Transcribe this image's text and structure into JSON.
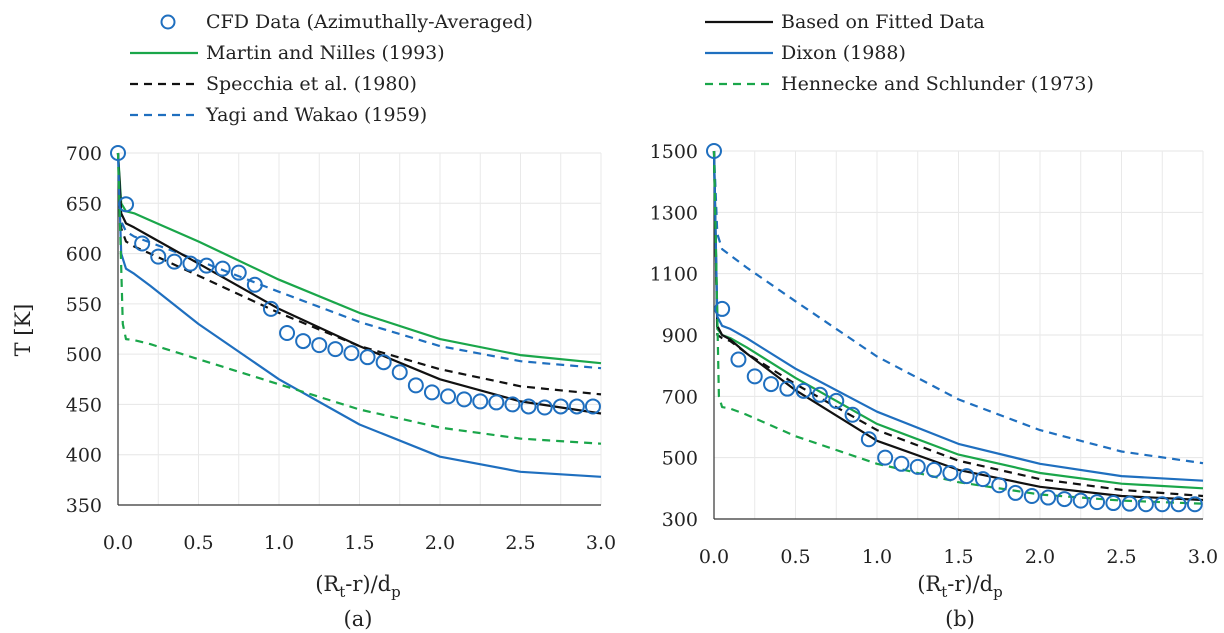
{
  "legend": [
    {
      "label": "CFD Data (Azimuthally-Averaged)",
      "style": "marker",
      "color": "#1f6fbf"
    },
    {
      "label": "Martin and Nilles (1993)",
      "style": "solid",
      "color": "#1aa64a"
    },
    {
      "label": "Specchia et al. (1980)",
      "style": "dashed",
      "color": "#111111"
    },
    {
      "label": "Yagi and Wakao (1959)",
      "style": "dashed",
      "color": "#1f6fbf"
    },
    {
      "label": "Based on Fitted Data",
      "style": "solid",
      "color": "#111111"
    },
    {
      "label": "Dixon (1988)",
      "style": "solid",
      "color": "#1f6fbf"
    },
    {
      "label": "Hennecke and Schlunder (1973)",
      "style": "dashed",
      "color": "#1aa64a"
    }
  ],
  "chart_data": [
    {
      "type": "line",
      "panel_label": "(a)",
      "xlabel": "(R_t-r)/d_p",
      "ylabel": "T [K]",
      "xlim": [
        0,
        3
      ],
      "ylim": [
        350,
        700
      ],
      "xticks": [
        "0.0",
        "0.5",
        "1.0",
        "1.5",
        "2.0",
        "2.5",
        "3.0"
      ],
      "yticks": [
        "350",
        "400",
        "450",
        "500",
        "550",
        "600",
        "650",
        "700"
      ],
      "grid": true,
      "cfd_points": {
        "x": [
          0.0,
          0.05,
          0.15,
          0.25,
          0.35,
          0.45,
          0.55,
          0.65,
          0.75,
          0.85,
          0.95,
          1.05,
          1.15,
          1.25,
          1.35,
          1.45,
          1.55,
          1.65,
          1.75,
          1.85,
          1.95,
          2.05,
          2.15,
          2.25,
          2.35,
          2.45,
          2.55,
          2.65,
          2.75,
          2.85,
          2.95
        ],
        "y": [
          700,
          649,
          610,
          597,
          592,
          590,
          588,
          585,
          581,
          569,
          545,
          521,
          513,
          509,
          505,
          501,
          497,
          492,
          482,
          469,
          462,
          458,
          455,
          453,
          452,
          450,
          448,
          447,
          448,
          448,
          448
        ]
      },
      "series": [
        {
          "name": "Martin and Nilles (1993)",
          "x": [
            0,
            0.02,
            0.05,
            0.1,
            0.2,
            0.5,
            1.0,
            1.5,
            2.0,
            2.5,
            3.0
          ],
          "y": [
            700,
            650,
            642,
            640,
            633,
            612,
            574,
            541,
            515,
            499,
            491
          ]
        },
        {
          "name": "Specchia et al. (1980)",
          "x": [
            0,
            0.02,
            0.05,
            0.1,
            0.2,
            0.5,
            1.0,
            1.5,
            2.0,
            2.5,
            3.0
          ],
          "y": [
            700,
            625,
            612,
            607,
            600,
            578,
            541,
            508,
            485,
            468,
            460
          ]
        },
        {
          "name": "Yagi and Wakao (1959)",
          "x": [
            0,
            0.02,
            0.05,
            0.1,
            0.2,
            0.5,
            1.0,
            1.5,
            2.0,
            2.5,
            3.0
          ],
          "y": [
            700,
            632,
            622,
            617,
            611,
            593,
            562,
            532,
            508,
            493,
            486
          ]
        },
        {
          "name": "Based on Fitted Data",
          "x": [
            0,
            0.02,
            0.05,
            0.1,
            0.2,
            0.5,
            1.0,
            1.5,
            2.0,
            2.5,
            3.0
          ],
          "y": [
            700,
            640,
            630,
            626,
            617,
            590,
            545,
            508,
            475,
            453,
            441
          ]
        },
        {
          "name": "Dixon (1988)",
          "x": [
            0,
            0.02,
            0.05,
            0.1,
            0.2,
            0.5,
            1.0,
            1.5,
            2.0,
            2.5,
            3.0
          ],
          "y": [
            700,
            600,
            585,
            580,
            568,
            530,
            475,
            430,
            398,
            383,
            378
          ]
        },
        {
          "name": "Hennecke and Schlunder (1973)",
          "x": [
            0,
            0.03,
            0.05,
            0.1,
            0.2,
            0.5,
            1.0,
            1.5,
            2.0,
            2.5,
            3.0
          ],
          "y": [
            700,
            530,
            515,
            514,
            510,
            495,
            470,
            445,
            427,
            416,
            411
          ]
        }
      ]
    },
    {
      "type": "line",
      "panel_label": "(b)",
      "xlabel": "(R_t-r)/d_p",
      "ylabel": "",
      "xlim": [
        0,
        3
      ],
      "ylim": [
        300,
        1500
      ],
      "xticks": [
        "0.0",
        "0.5",
        "1.0",
        "1.5",
        "2.0",
        "2.5",
        "3.0"
      ],
      "yticks": [
        "300",
        "500",
        "700",
        "900",
        "1100",
        "1300",
        "1500"
      ],
      "grid": true,
      "cfd_points": {
        "x": [
          0.0,
          0.05,
          0.15,
          0.25,
          0.35,
          0.45,
          0.55,
          0.65,
          0.75,
          0.85,
          0.95,
          1.05,
          1.15,
          1.25,
          1.35,
          1.45,
          1.55,
          1.65,
          1.75,
          1.85,
          1.95,
          2.05,
          2.15,
          2.25,
          2.35,
          2.45,
          2.55,
          2.65,
          2.75,
          2.85,
          2.95
        ],
        "y": [
          1500,
          985,
          820,
          765,
          740,
          725,
          718,
          705,
          685,
          640,
          560,
          500,
          480,
          470,
          460,
          450,
          440,
          430,
          410,
          385,
          375,
          370,
          365,
          360,
          355,
          352,
          350,
          348,
          348,
          348,
          348
        ]
      },
      "series": [
        {
          "name": "Martin and Nilles (1993)",
          "x": [
            0,
            0.02,
            0.05,
            0.1,
            0.2,
            0.5,
            1.0,
            1.5,
            2.0,
            2.5,
            3.0
          ],
          "y": [
            1500,
            920,
            900,
            890,
            860,
            760,
            610,
            510,
            450,
            415,
            400
          ]
        },
        {
          "name": "Specchia et al. (1980)",
          "x": [
            0,
            0.02,
            0.05,
            0.1,
            0.2,
            0.5,
            1.0,
            1.5,
            2.0,
            2.5,
            3.0
          ],
          "y": [
            1500,
            900,
            890,
            880,
            840,
            740,
            590,
            490,
            430,
            395,
            375
          ]
        },
        {
          "name": "Yagi and Wakao (1959)",
          "x": [
            0,
            0.02,
            0.05,
            0.1,
            0.2,
            0.5,
            1.0,
            1.5,
            2.0,
            2.5,
            3.0
          ],
          "y": [
            1500,
            1230,
            1180,
            1160,
            1120,
            1010,
            830,
            690,
            590,
            520,
            482
          ]
        },
        {
          "name": "Based on Fitted Data",
          "x": [
            0,
            0.02,
            0.05,
            0.1,
            0.2,
            0.5,
            1.0,
            1.5,
            2.0,
            2.5,
            3.0
          ],
          "y": [
            1500,
            930,
            900,
            885,
            840,
            720,
            555,
            460,
            405,
            375,
            362
          ]
        },
        {
          "name": "Dixon (1988)",
          "x": [
            0,
            0.02,
            0.05,
            0.1,
            0.2,
            0.5,
            1.0,
            1.5,
            2.0,
            2.5,
            3.0
          ],
          "y": [
            1500,
            960,
            930,
            920,
            890,
            790,
            650,
            545,
            480,
            440,
            425
          ]
        },
        {
          "name": "Hennecke and Schlunder (1973)",
          "x": [
            0,
            0.03,
            0.05,
            0.1,
            0.2,
            0.5,
            1.0,
            1.5,
            2.0,
            2.5,
            3.0
          ],
          "y": [
            1500,
            700,
            665,
            660,
            640,
            570,
            480,
            420,
            380,
            360,
            350
          ]
        }
      ]
    }
  ]
}
